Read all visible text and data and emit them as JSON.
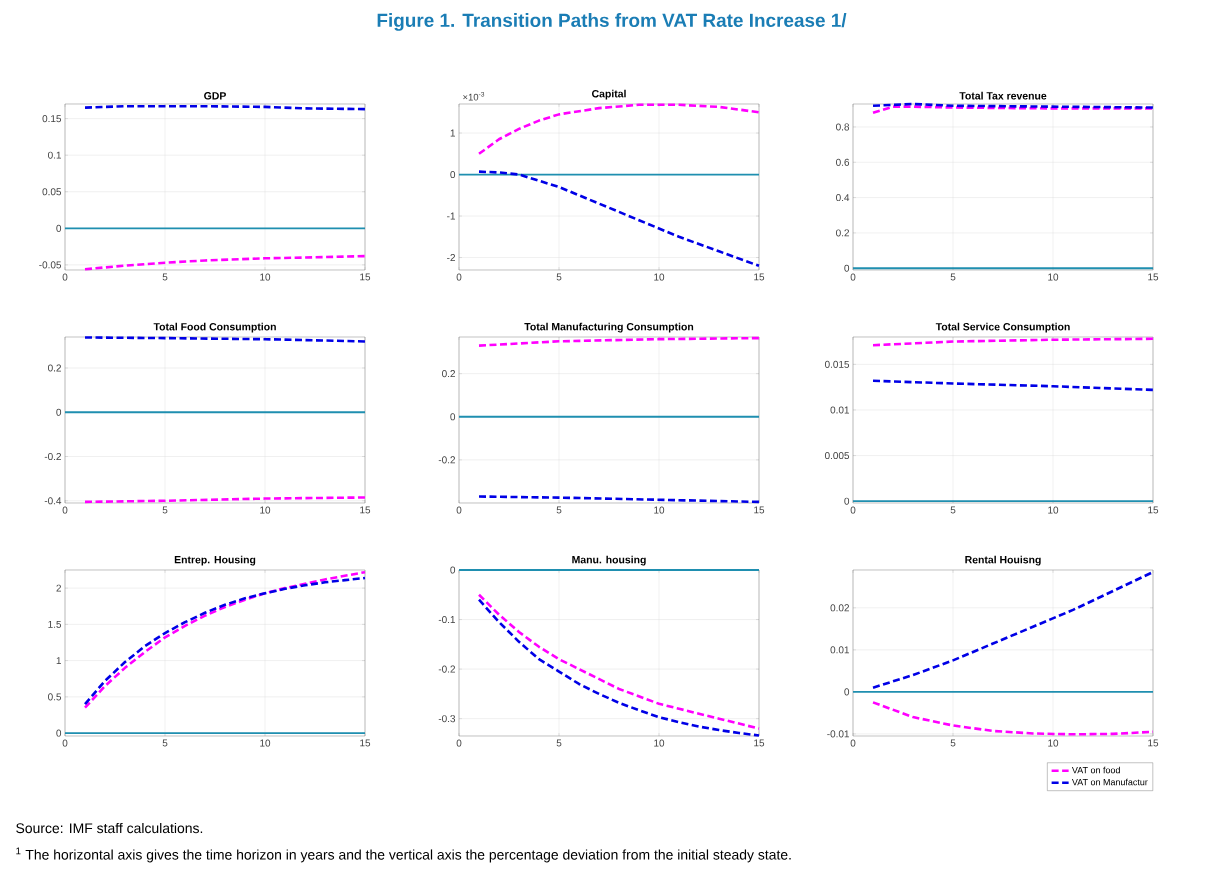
{
  "chart_data": [
    {
      "type": "other",
      "title": "Figure 1. Transition Paths from VAT Rate Increase 1/",
      "annotations": [
        "Source: IMF staff calculations.",
        "$^{1}$ The horizontal axis gives the time horizon in years and the vertical axis the percentage deviation from the initial steady state."
      ]
    },
    {
      "type": "line",
      "title": "GDP",
      "xlim": [
        0,
        15
      ],
      "xticks": [
        0,
        5,
        10,
        15
      ],
      "ylim": [
        -0.057,
        0.17
      ],
      "yticks": [
        -0.05,
        0,
        0.05,
        0.1,
        0.15
      ],
      "grid": true,
      "ref_lines": [
        {
          "axis": "y",
          "value": 0,
          "color": "#1f8fb0"
        }
      ],
      "series": [
        {
          "color": "#ff00ff",
          "line_style": "dashed",
          "x": [
            1,
            3,
            5,
            7,
            10,
            12,
            15
          ],
          "values": [
            -0.056,
            -0.051,
            -0.047,
            -0.044,
            -0.041,
            -0.04,
            -0.038
          ]
        },
        {
          "color": "#0000e6",
          "line_style": "dashed",
          "x": [
            1,
            3,
            5,
            7,
            10,
            12,
            15
          ],
          "values": [
            0.165,
            0.167,
            0.167,
            0.167,
            0.166,
            0.164,
            0.163
          ]
        }
      ]
    },
    {
      "type": "line",
      "title": "Capital",
      "annotations": [
        "×10$^{-3}$"
      ],
      "xlim": [
        0,
        15
      ],
      "xticks": [
        0,
        5,
        10,
        15
      ],
      "ylim": [
        -2.3,
        1.7
      ],
      "yticks": [
        -2,
        -1,
        0,
        1
      ],
      "grid": true,
      "ref_lines": [
        {
          "axis": "y",
          "value": 0,
          "color": "#1f8fb0"
        }
      ],
      "series": [
        {
          "color": "#ff00ff",
          "line_style": "dashed",
          "x": [
            1,
            2,
            3,
            4,
            5,
            7,
            9,
            11,
            13,
            15
          ],
          "values": [
            0.5,
            0.85,
            1.1,
            1.3,
            1.45,
            1.6,
            1.68,
            1.68,
            1.63,
            1.5
          ]
        },
        {
          "color": "#0000e6",
          "line_style": "dashed",
          "x": [
            1,
            2,
            3,
            5,
            7,
            9,
            11,
            13,
            15
          ],
          "values": [
            0.07,
            0.05,
            0.0,
            -0.3,
            -0.7,
            -1.1,
            -1.5,
            -1.85,
            -2.2
          ]
        }
      ]
    },
    {
      "type": "line",
      "title": "Total Tax revenue",
      "xlim": [
        0,
        15
      ],
      "xticks": [
        0,
        5,
        10,
        15
      ],
      "ylim": [
        -0.01,
        0.93
      ],
      "yticks": [
        0,
        0.2,
        0.4,
        0.6,
        0.8
      ],
      "grid": true,
      "ref_lines": [
        {
          "axis": "y",
          "value": 0,
          "color": "#1f8fb0"
        }
      ],
      "series": [
        {
          "color": "#ff00ff",
          "line_style": "dashed",
          "x": [
            1,
            2,
            3,
            5,
            10,
            15
          ],
          "values": [
            0.88,
            0.915,
            0.915,
            0.91,
            0.905,
            0.905
          ]
        },
        {
          "color": "#0000e6",
          "line_style": "dashed",
          "x": [
            1,
            3,
            5,
            10,
            15
          ],
          "values": [
            0.92,
            0.93,
            0.92,
            0.915,
            0.91
          ]
        }
      ]
    },
    {
      "type": "line",
      "title": "Total Food Consumption",
      "xlim": [
        0,
        15
      ],
      "xticks": [
        0,
        5,
        10,
        15
      ],
      "ylim": [
        -0.41,
        0.34
      ],
      "yticks": [
        -0.4,
        -0.2,
        0,
        0.2
      ],
      "grid": true,
      "ref_lines": [
        {
          "axis": "y",
          "value": 0,
          "color": "#1f8fb0"
        }
      ],
      "series": [
        {
          "color": "#ff00ff",
          "line_style": "dashed",
          "x": [
            1,
            5,
            10,
            15
          ],
          "values": [
            -0.405,
            -0.4,
            -0.39,
            -0.385
          ]
        },
        {
          "color": "#0000e6",
          "line_style": "dashed",
          "x": [
            1,
            5,
            10,
            15
          ],
          "values": [
            0.338,
            0.335,
            0.33,
            0.32
          ]
        }
      ]
    },
    {
      "type": "line",
      "title": "Total Manufacturing Consumption",
      "xlim": [
        0,
        15
      ],
      "xticks": [
        0,
        5,
        10,
        15
      ],
      "ylim": [
        -0.4,
        0.37
      ],
      "yticks": [
        -0.2,
        0,
        0.2
      ],
      "grid": true,
      "ref_lines": [
        {
          "axis": "y",
          "value": 0,
          "color": "#1f8fb0"
        }
      ],
      "series": [
        {
          "color": "#ff00ff",
          "line_style": "dashed",
          "x": [
            1,
            5,
            10,
            15
          ],
          "values": [
            0.33,
            0.35,
            0.36,
            0.365
          ]
        },
        {
          "color": "#0000e6",
          "line_style": "dashed",
          "x": [
            1,
            5,
            10,
            15
          ],
          "values": [
            -0.37,
            -0.375,
            -0.385,
            -0.395
          ]
        }
      ]
    },
    {
      "type": "line",
      "title": "Total Service Consumption",
      "xlim": [
        0,
        15
      ],
      "xticks": [
        0,
        5,
        10,
        15
      ],
      "ylim": [
        -0.0002,
        0.018
      ],
      "yticks": [
        0,
        0.005,
        0.01,
        0.015
      ],
      "grid": true,
      "ref_lines": [
        {
          "axis": "y",
          "value": 0,
          "color": "#1f8fb0"
        }
      ],
      "series": [
        {
          "color": "#ff00ff",
          "line_style": "dashed",
          "x": [
            1,
            5,
            10,
            15
          ],
          "values": [
            0.0171,
            0.0175,
            0.0177,
            0.0178
          ]
        },
        {
          "color": "#0000e6",
          "line_style": "dashed",
          "x": [
            1,
            5,
            10,
            15
          ],
          "values": [
            0.0132,
            0.0129,
            0.0126,
            0.0122
          ]
        }
      ]
    },
    {
      "type": "line",
      "title": "Entrep. Housing",
      "xlim": [
        0,
        15
      ],
      "xticks": [
        0,
        5,
        10,
        15
      ],
      "ylim": [
        -0.04,
        2.25
      ],
      "yticks": [
        0,
        0.5,
        1,
        1.5,
        2
      ],
      "grid": true,
      "ref_lines": [
        {
          "axis": "y",
          "value": 0,
          "color": "#1f8fb0"
        }
      ],
      "series": [
        {
          "color": "#ff00ff",
          "line_style": "dashed",
          "x": [
            1,
            2,
            3,
            4,
            5,
            6,
            7,
            8,
            9,
            10,
            11,
            12,
            13,
            14,
            15
          ],
          "values": [
            0.35,
            0.65,
            0.9,
            1.12,
            1.32,
            1.48,
            1.62,
            1.74,
            1.84,
            1.93,
            2.0,
            2.06,
            2.12,
            2.17,
            2.22
          ]
        },
        {
          "color": "#0000e6",
          "line_style": "dashed",
          "x": [
            1,
            2,
            3,
            4,
            5,
            6,
            7,
            8,
            9,
            10,
            11,
            12,
            13,
            14,
            15
          ],
          "values": [
            0.4,
            0.72,
            0.98,
            1.2,
            1.38,
            1.53,
            1.66,
            1.77,
            1.86,
            1.93,
            1.99,
            2.04,
            2.08,
            2.11,
            2.14
          ]
        }
      ]
    },
    {
      "type": "line",
      "title": "Manu. housing",
      "xlim": [
        0,
        15
      ],
      "xticks": [
        0,
        5,
        10,
        15
      ],
      "ylim": [
        -0.335,
        0
      ],
      "yticks": [
        -0.3,
        -0.2,
        -0.1,
        0
      ],
      "grid": true,
      "ref_lines": [
        {
          "axis": "y",
          "value": 0,
          "color": "#1f8fb0"
        }
      ],
      "series": [
        {
          "color": "#ff00ff",
          "line_style": "dashed",
          "x": [
            1,
            2,
            3,
            4,
            5,
            6,
            7,
            8,
            9,
            10,
            11,
            12,
            13,
            14,
            15
          ],
          "values": [
            -0.05,
            -0.09,
            -0.125,
            -0.155,
            -0.18,
            -0.2,
            -0.22,
            -0.24,
            -0.255,
            -0.27,
            -0.28,
            -0.29,
            -0.3,
            -0.31,
            -0.32
          ]
        },
        {
          "color": "#0000e6",
          "line_style": "dashed",
          "x": [
            1,
            2,
            3,
            4,
            5,
            6,
            7,
            8,
            9,
            10,
            11,
            12,
            13,
            14,
            15
          ],
          "values": [
            -0.06,
            -0.105,
            -0.145,
            -0.18,
            -0.205,
            -0.23,
            -0.25,
            -0.268,
            -0.283,
            -0.297,
            -0.307,
            -0.316,
            -0.323,
            -0.329,
            -0.334
          ]
        }
      ]
    },
    {
      "type": "line",
      "title": "Rental Houisng",
      "xlim": [
        0,
        15
      ],
      "xticks": [
        0,
        5,
        10,
        15
      ],
      "ylim": [
        -0.0105,
        0.029
      ],
      "yticks": [
        -0.01,
        0,
        0.01,
        0.02
      ],
      "grid": true,
      "legend": "bottom right",
      "ref_lines": [
        {
          "axis": "y",
          "value": 0,
          "color": "#1f8fb0"
        }
      ],
      "series": [
        {
          "name": "VAT on food",
          "color": "#ff00ff",
          "line_style": "dashed",
          "x": [
            1,
            3,
            5,
            7,
            9,
            11,
            13,
            15
          ],
          "values": [
            -0.0025,
            -0.006,
            -0.008,
            -0.0093,
            -0.0099,
            -0.0101,
            -0.01,
            -0.0095
          ]
        },
        {
          "name": "VAT on Manufactur",
          "color": "#0000e6",
          "line_style": "dashed",
          "x": [
            1,
            3,
            5,
            7,
            9,
            11,
            13,
            15
          ],
          "values": [
            0.001,
            0.004,
            0.0075,
            0.0115,
            0.0155,
            0.0195,
            0.024,
            0.0285
          ]
        }
      ]
    }
  ]
}
